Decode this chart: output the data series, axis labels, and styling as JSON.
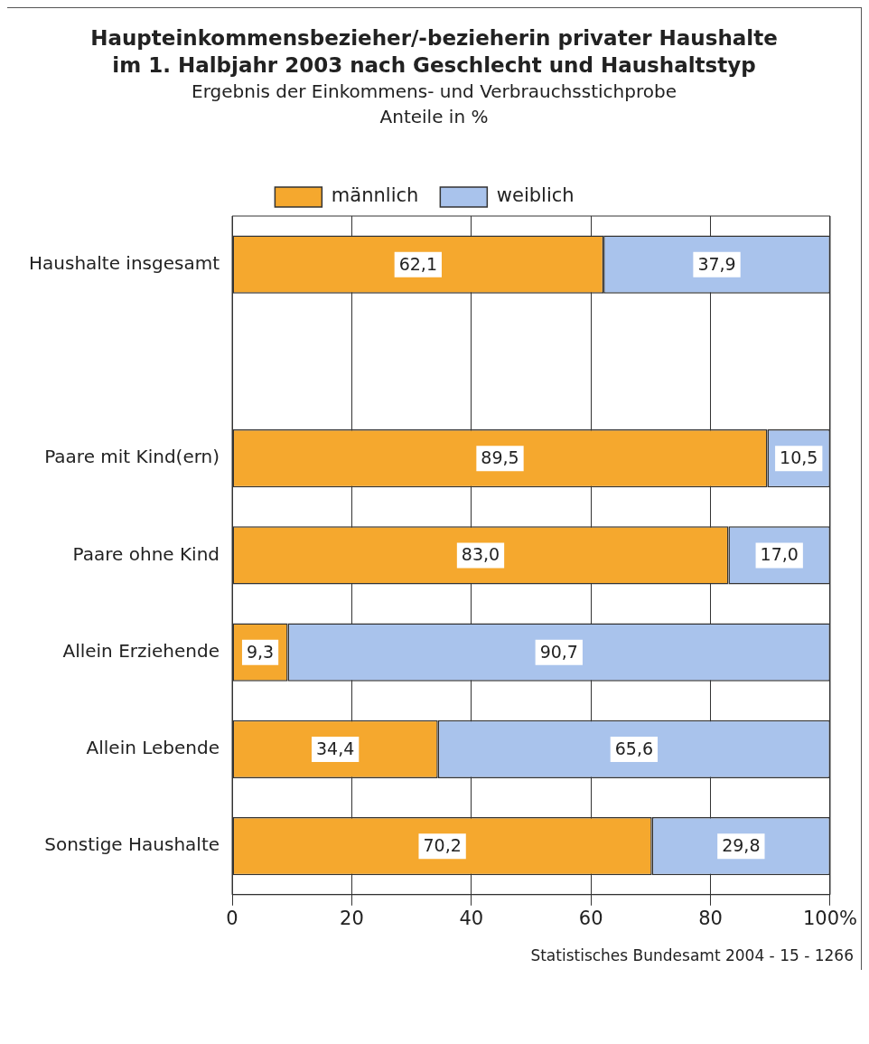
{
  "chart_data": {
    "type": "bar",
    "orientation": "horizontal",
    "stacked": true,
    "title": "Haupteinkommensbezieher/-bezieherin privater Haushalte im 1. Halbjahr 2003 nach Geschlecht und Haushaltstyp",
    "subtitle": "Ergebnis der Einkommens- und Verbrauchsstichprobe\nAnteile in %",
    "categories": [
      "Haushalte insgesamt",
      null,
      "Paare mit Kind(ern)",
      "Paare ohne Kind",
      "Allein Erziehende",
      "Allein Lebende",
      "Sonstige Haushalte"
    ],
    "series": [
      {
        "name": "männlich",
        "color": "#f5a82e",
        "values": [
          62.1,
          null,
          89.5,
          83.0,
          9.3,
          34.4,
          70.2
        ],
        "value_labels": [
          "62,1",
          null,
          "89,5",
          "83,0",
          "9,3",
          "34,4",
          "70,2"
        ]
      },
      {
        "name": "weiblich",
        "color": "#a9c3ec",
        "values": [
          37.9,
          null,
          10.5,
          17.0,
          90.7,
          65.6,
          29.8
        ],
        "value_labels": [
          "37,9",
          null,
          "10,5",
          "17,0",
          "90,7",
          "65,6",
          "29,8"
        ]
      }
    ],
    "xlim": [
      0,
      100
    ],
    "xticks": [
      0,
      20,
      40,
      60,
      80,
      {
        "value": 100,
        "label": "100%"
      }
    ],
    "grid": "x",
    "legend": "top",
    "annotations": [
      "Statistisches Bundesamt 2004 - 15 - 1266"
    ]
  }
}
